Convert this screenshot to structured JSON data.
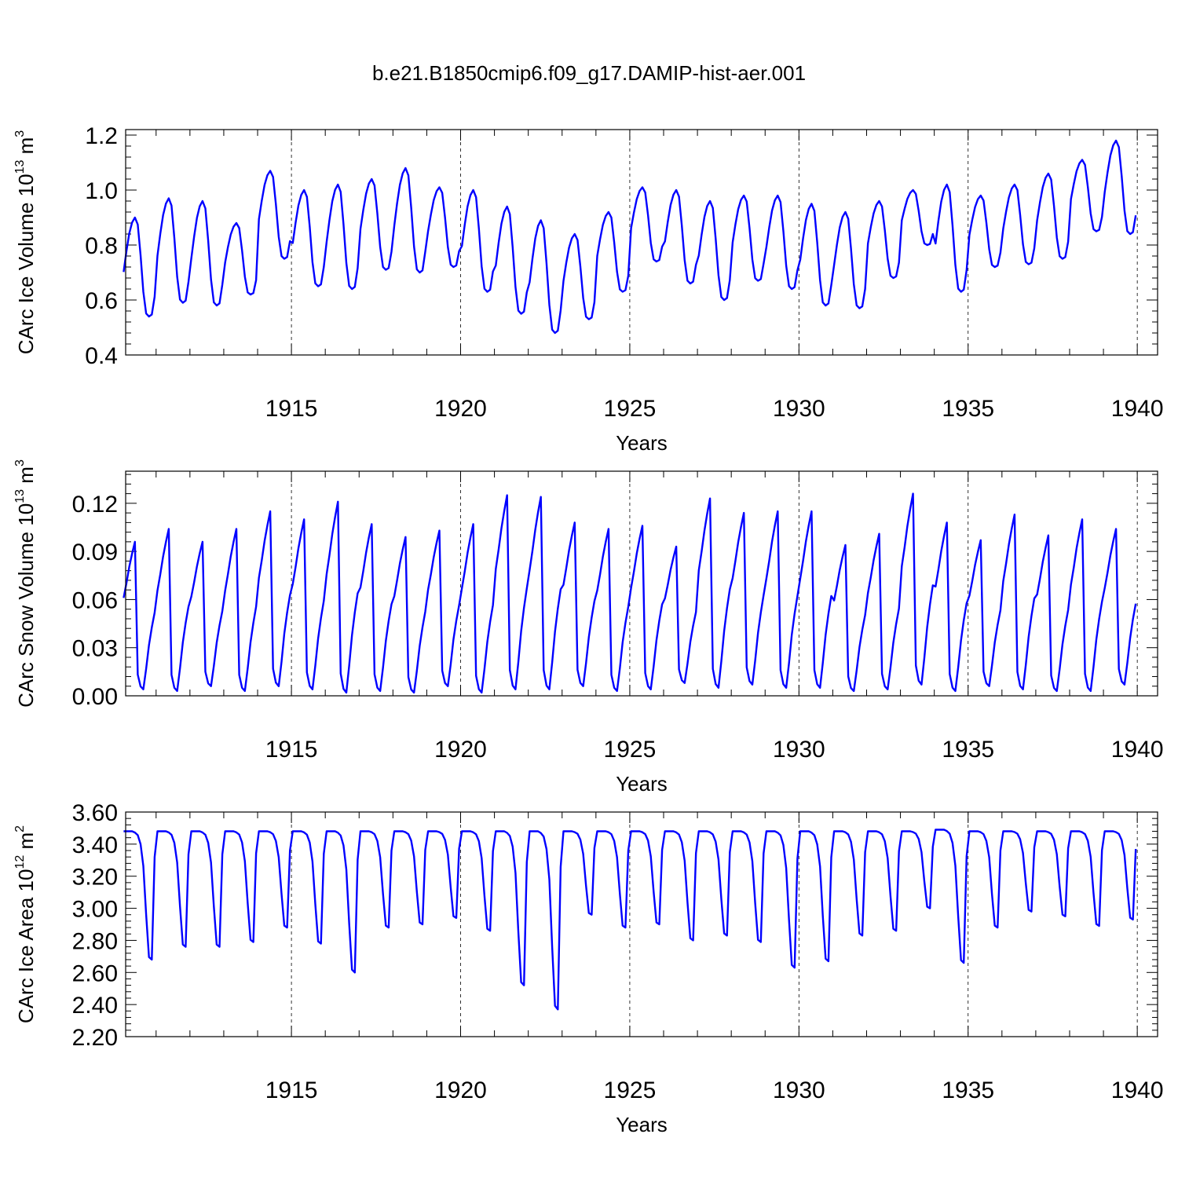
{
  "chart_data": {
    "title": "b.e21.B1850cmip6.f09_g17.DAMIP-hist-aer.001",
    "line_color": "#0000ff",
    "panels": [
      {
        "type": "line",
        "ylabel": "CArc Ice Volume 10",
        "ylabel_exp": "13",
        "ylabel_unit": " m",
        "ylabel_unit_exp": "3",
        "xlabel": "Years",
        "xlim": [
          1910.1,
          1940.6
        ],
        "ylim": [
          0.4,
          1.22
        ],
        "yticks": [
          0.4,
          0.6,
          0.8,
          1.0,
          1.2
        ],
        "ytick_labels": [
          "0.4",
          "0.6",
          "0.8",
          "1.0",
          "1.2"
        ],
        "xticks": [
          1915,
          1920,
          1925,
          1930,
          1935,
          1940
        ],
        "xtick_labels": [
          "1915",
          "1920",
          "1925",
          "1930",
          "1935",
          "1940"
        ],
        "x_start": 1910.04,
        "x_step": 0.08333,
        "series": [
          {
            "name": "CArc Ice Volume",
            "kind": "ice_volume",
            "min": [
              0.54,
              0.59,
              0.58,
              0.62,
              0.75,
              0.65,
              0.64,
              0.71,
              0.7,
              0.72,
              0.63,
              0.55,
              0.48,
              0.53,
              0.63,
              0.74,
              0.66,
              0.6,
              0.67,
              0.64,
              0.58,
              0.57,
              0.68,
              0.8,
              0.63,
              0.72,
              0.73,
              0.75,
              0.85,
              0.84
            ],
            "max": [
              0.9,
              0.97,
              0.96,
              0.88,
              1.07,
              1.0,
              1.02,
              1.04,
              1.08,
              1.01,
              1.0,
              0.94,
              0.89,
              0.84,
              0.92,
              1.01,
              1.0,
              0.96,
              0.98,
              0.98,
              0.95,
              0.92,
              0.96,
              1.0,
              1.02,
              0.98,
              1.02,
              1.06,
              1.11,
              1.18
            ]
          }
        ]
      },
      {
        "type": "line",
        "ylabel": "CArc Snow Volume 10",
        "ylabel_exp": "13",
        "ylabel_unit": " m",
        "ylabel_unit_exp": "3",
        "xlabel": "Years",
        "xlim": [
          1910.1,
          1940.6
        ],
        "ylim": [
          0.0,
          0.14
        ],
        "yticks": [
          0.0,
          0.03,
          0.06,
          0.09,
          0.12
        ],
        "ytick_labels": [
          "0.00",
          "0.03",
          "0.06",
          "0.09",
          "0.12"
        ],
        "xticks": [
          1915,
          1920,
          1925,
          1930,
          1935,
          1940
        ],
        "xtick_labels": [
          "1915",
          "1920",
          "1925",
          "1930",
          "1935",
          "1940"
        ],
        "x_start": 1910.04,
        "x_step": 0.08333,
        "series": [
          {
            "name": "CArc Snow Volume",
            "kind": "snow_volume",
            "min": [
              0.004,
              0.003,
              0.006,
              0.003,
              0.006,
              0.004,
              0.002,
              0.003,
              0.002,
              0.006,
              0.002,
              0.004,
              0.004,
              0.006,
              0.003,
              0.004,
              0.008,
              0.005,
              0.007,
              0.005,
              0.005,
              0.003,
              0.004,
              0.007,
              0.003,
              0.006,
              0.004,
              0.003,
              0.003,
              0.007
            ],
            "max": [
              0.096,
              0.104,
              0.096,
              0.104,
              0.115,
              0.11,
              0.121,
              0.107,
              0.099,
              0.103,
              0.107,
              0.125,
              0.124,
              0.108,
              0.104,
              0.106,
              0.093,
              0.123,
              0.114,
              0.115,
              0.115,
              0.094,
              0.101,
              0.126,
              0.108,
              0.097,
              0.113,
              0.1,
              0.11,
              0.104
            ]
          }
        ]
      },
      {
        "type": "line",
        "ylabel": "CArc Ice Area 10",
        "ylabel_exp": "12",
        "ylabel_unit": " m",
        "ylabel_unit_exp": "2",
        "xlabel": "Years",
        "xlim": [
          1910.1,
          1940.6
        ],
        "ylim": [
          2.2,
          3.6
        ],
        "yticks": [
          2.2,
          2.4,
          2.6,
          2.8,
          3.0,
          3.2,
          3.4,
          3.6
        ],
        "ytick_labels": [
          "2.20",
          "2.40",
          "2.60",
          "2.80",
          "3.00",
          "3.20",
          "3.40",
          "3.60"
        ],
        "xticks": [
          1915,
          1920,
          1925,
          1930,
          1935,
          1940
        ],
        "xtick_labels": [
          "1915",
          "1920",
          "1925",
          "1930",
          "1935",
          "1940"
        ],
        "x_start": 1910.04,
        "x_step": 0.08333,
        "series": [
          {
            "name": "CArc Ice Area",
            "kind": "ice_area",
            "min": [
              2.68,
              2.76,
              2.76,
              2.79,
              2.88,
              2.78,
              2.6,
              2.88,
              2.9,
              2.94,
              2.86,
              2.52,
              2.37,
              2.96,
              2.88,
              2.9,
              2.8,
              2.83,
              2.79,
              2.63,
              2.67,
              2.83,
              2.86,
              3.0,
              2.66,
              2.88,
              2.98,
              2.95,
              2.89,
              2.93
            ],
            "max": [
              3.48,
              3.48,
              3.48,
              3.48,
              3.48,
              3.48,
              3.48,
              3.48,
              3.48,
              3.48,
              3.48,
              3.48,
              3.48,
              3.48,
              3.48,
              3.48,
              3.48,
              3.48,
              3.48,
              3.48,
              3.48,
              3.48,
              3.48,
              3.48,
              3.49,
              3.48,
              3.48,
              3.48,
              3.48,
              3.48
            ]
          }
        ]
      }
    ]
  }
}
